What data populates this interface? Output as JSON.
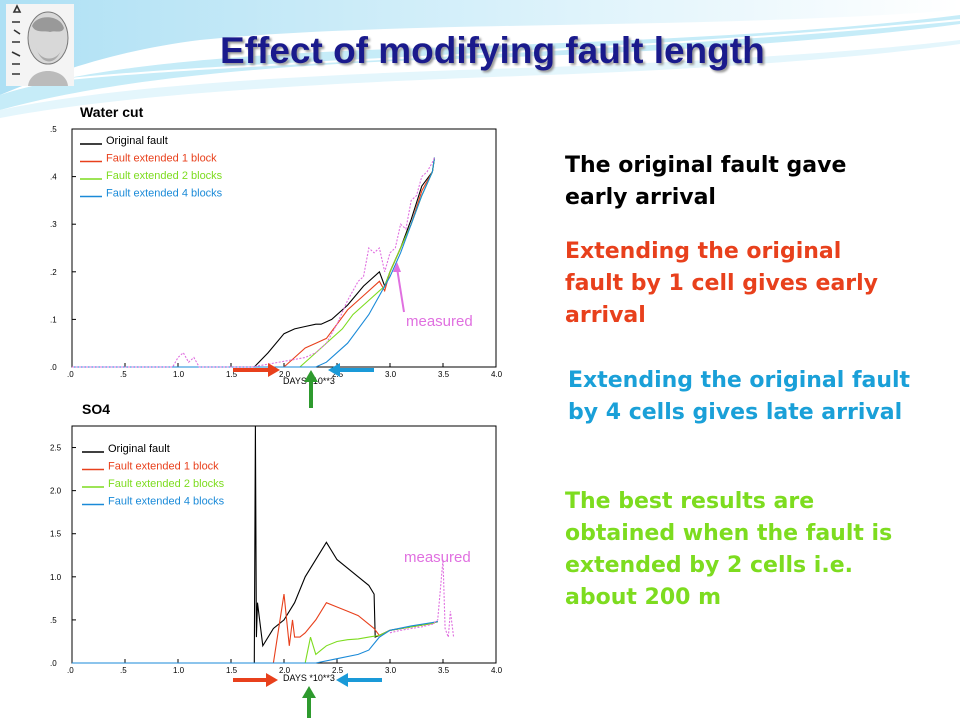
{
  "slide": {
    "title": "Effect of modifying fault length",
    "logo_text": "ΔΗΜΟΚΡΙΤΟΣ"
  },
  "statements": {
    "s1": "The original fault gave early arrival",
    "s2": "Extending the original fault by 1 cell gives early arrival",
    "s3": "Extending the original fault by 4 cells gives late arrival",
    "s4": "The best results are obtained when the fault is extended by 2 cells i.e. about 200 m"
  },
  "colors": {
    "title": "#1a1a8c",
    "original": "#000000",
    "ext1": "#e8401c",
    "ext2": "#7ddc1f",
    "ext4": "#1a8ad8",
    "measured": "#e070e0",
    "arrow_red": "#e8401c",
    "arrow_green": "#2e9a2e",
    "arrow_blue": "#1a9ad8"
  },
  "chart_data": [
    {
      "type": "line",
      "title": "Water cut",
      "xlabel": "DAYS *10**3",
      "xlim": [
        0,
        4
      ],
      "ylim": [
        0,
        0.5
      ],
      "xticks": [
        ".0",
        ".5",
        "1.0",
        "1.5",
        "2.0",
        "2.5",
        "3.0",
        "3.5",
        "4.0"
      ],
      "yticks": [
        ".0",
        ".1",
        ".2",
        ".3",
        ".4",
        ".5"
      ],
      "annotation": "measured",
      "series": [
        {
          "name": "Original fault",
          "color": "#000000",
          "x": [
            0,
            1.72,
            1.85,
            2.0,
            2.1,
            2.2,
            2.3,
            2.35,
            2.45,
            2.6,
            2.75,
            2.9,
            2.95,
            3.0,
            3.1,
            3.2,
            3.3,
            3.4,
            3.42
          ],
          "y": [
            0,
            0,
            0.03,
            0.07,
            0.08,
            0.085,
            0.09,
            0.09,
            0.1,
            0.13,
            0.17,
            0.2,
            0.17,
            0.2,
            0.25,
            0.31,
            0.38,
            0.41,
            0.44
          ]
        },
        {
          "name": "Fault extended 1 block",
          "color": "#e8401c",
          "x": [
            0,
            2.0,
            2.1,
            2.2,
            2.3,
            2.4,
            2.5,
            2.6,
            2.75,
            2.9,
            2.95,
            3.0,
            3.1,
            3.2,
            3.3,
            3.4,
            3.42
          ],
          "y": [
            0,
            0,
            0.02,
            0.04,
            0.05,
            0.06,
            0.09,
            0.12,
            0.15,
            0.18,
            0.16,
            0.2,
            0.25,
            0.3,
            0.37,
            0.41,
            0.44
          ]
        },
        {
          "name": "Fault extended 2 blocks",
          "color": "#7ddc1f",
          "x": [
            0,
            2.15,
            2.25,
            2.35,
            2.45,
            2.55,
            2.65,
            2.8,
            2.95,
            3.0,
            3.1,
            3.2,
            3.3,
            3.4,
            3.42
          ],
          "y": [
            0,
            0,
            0.02,
            0.04,
            0.06,
            0.08,
            0.11,
            0.14,
            0.17,
            0.2,
            0.25,
            0.3,
            0.36,
            0.41,
            0.44
          ]
        },
        {
          "name": "Fault extended 4 blocks",
          "color": "#1a8ad8",
          "x": [
            0,
            2.3,
            2.4,
            2.5,
            2.6,
            2.7,
            2.8,
            2.9,
            3.0,
            3.1,
            3.2,
            3.3,
            3.4,
            3.42
          ],
          "y": [
            0,
            0,
            0.01,
            0.03,
            0.05,
            0.08,
            0.11,
            0.15,
            0.19,
            0.24,
            0.3,
            0.36,
            0.41,
            0.44
          ]
        },
        {
          "name": "measured",
          "color": "#e070e0",
          "dashed": true,
          "x": [
            0,
            0.95,
            1.0,
            1.05,
            1.1,
            1.15,
            1.2,
            1.7,
            2.2,
            2.3,
            2.4,
            2.5,
            2.6,
            2.7,
            2.75,
            2.8,
            2.85,
            2.9,
            2.95,
            3.0,
            3.05,
            3.1,
            3.15,
            3.2,
            3.25,
            3.3,
            3.35,
            3.4,
            3.42
          ],
          "y": [
            0,
            0,
            0.02,
            0.03,
            0.01,
            0.02,
            0,
            0,
            0.02,
            0.03,
            0.05,
            0.09,
            0.14,
            0.18,
            0.19,
            0.25,
            0.24,
            0.25,
            0.2,
            0.24,
            0.25,
            0.3,
            0.29,
            0.35,
            0.36,
            0.4,
            0.41,
            0.43,
            0.44
          ]
        }
      ]
    },
    {
      "type": "line",
      "title": "SO4",
      "xlabel": "DAYS *10**3",
      "xlim": [
        0,
        4
      ],
      "ylim": [
        0,
        2.75
      ],
      "xticks": [
        ".0",
        ".5",
        "1.0",
        "1.5",
        "2.0",
        "2.5",
        "3.0",
        "3.5",
        "4.0"
      ],
      "yticks": [
        ".0",
        ".5",
        "1.0",
        "1.5",
        "2.0",
        "2.5"
      ],
      "annotation": "measured",
      "series": [
        {
          "name": "Original fault",
          "color": "#000000",
          "x": [
            1.72,
            1.73,
            1.74,
            1.75,
            1.8,
            1.9,
            2.0,
            2.1,
            2.2,
            2.3,
            2.4,
            2.5,
            2.6,
            2.7,
            2.8,
            2.85,
            2.86,
            2.9,
            3.0,
            3.2,
            3.4,
            3.45
          ],
          "y": [
            0,
            2.75,
            0.3,
            0.7,
            0.2,
            0.4,
            0.5,
            0.7,
            1.0,
            1.2,
            1.4,
            1.2,
            1.1,
            1.0,
            0.9,
            0.8,
            0.3,
            0.32,
            0.38,
            0.42,
            0.46,
            0.48
          ]
        },
        {
          "name": "Fault extended 1 block",
          "color": "#e8401c",
          "x": [
            1.9,
            1.95,
            2.0,
            2.05,
            2.08,
            2.1,
            2.15,
            2.2,
            2.3,
            2.4,
            2.5,
            2.6,
            2.7,
            2.8,
            2.85,
            2.9,
            3.0,
            3.2,
            3.4,
            3.45
          ],
          "y": [
            0,
            0.4,
            0.8,
            0.2,
            0.5,
            0.3,
            0.3,
            0.35,
            0.5,
            0.7,
            0.65,
            0.6,
            0.55,
            0.45,
            0.4,
            0.32,
            0.38,
            0.42,
            0.46,
            0.48
          ]
        },
        {
          "name": "Fault extended 2 blocks",
          "color": "#7ddc1f",
          "x": [
            2.2,
            2.25,
            2.3,
            2.35,
            2.4,
            2.5,
            2.6,
            2.7,
            2.8,
            2.9,
            3.0,
            3.2,
            3.4,
            3.45
          ],
          "y": [
            0,
            0.3,
            0.1,
            0.15,
            0.2,
            0.25,
            0.27,
            0.28,
            0.3,
            0.32,
            0.38,
            0.42,
            0.46,
            0.48
          ]
        },
        {
          "name": "Fault extended 4 blocks",
          "color": "#1a8ad8",
          "x": [
            0,
            2.3,
            2.5,
            2.7,
            2.8,
            2.9,
            3.0,
            3.2,
            3.4,
            3.45
          ],
          "y": [
            0,
            0,
            0.05,
            0.1,
            0.15,
            0.3,
            0.38,
            0.43,
            0.47,
            0.48
          ]
        },
        {
          "name": "measured",
          "color": "#e070e0",
          "dashed": true,
          "x": [
            3.0,
            3.1,
            3.2,
            3.3,
            3.4,
            3.45,
            3.5,
            3.52,
            3.55,
            3.57,
            3.6
          ],
          "y": [
            0.35,
            0.38,
            0.4,
            0.42,
            0.45,
            0.5,
            1.2,
            0.4,
            0.3,
            0.6,
            0.3
          ]
        }
      ]
    }
  ]
}
